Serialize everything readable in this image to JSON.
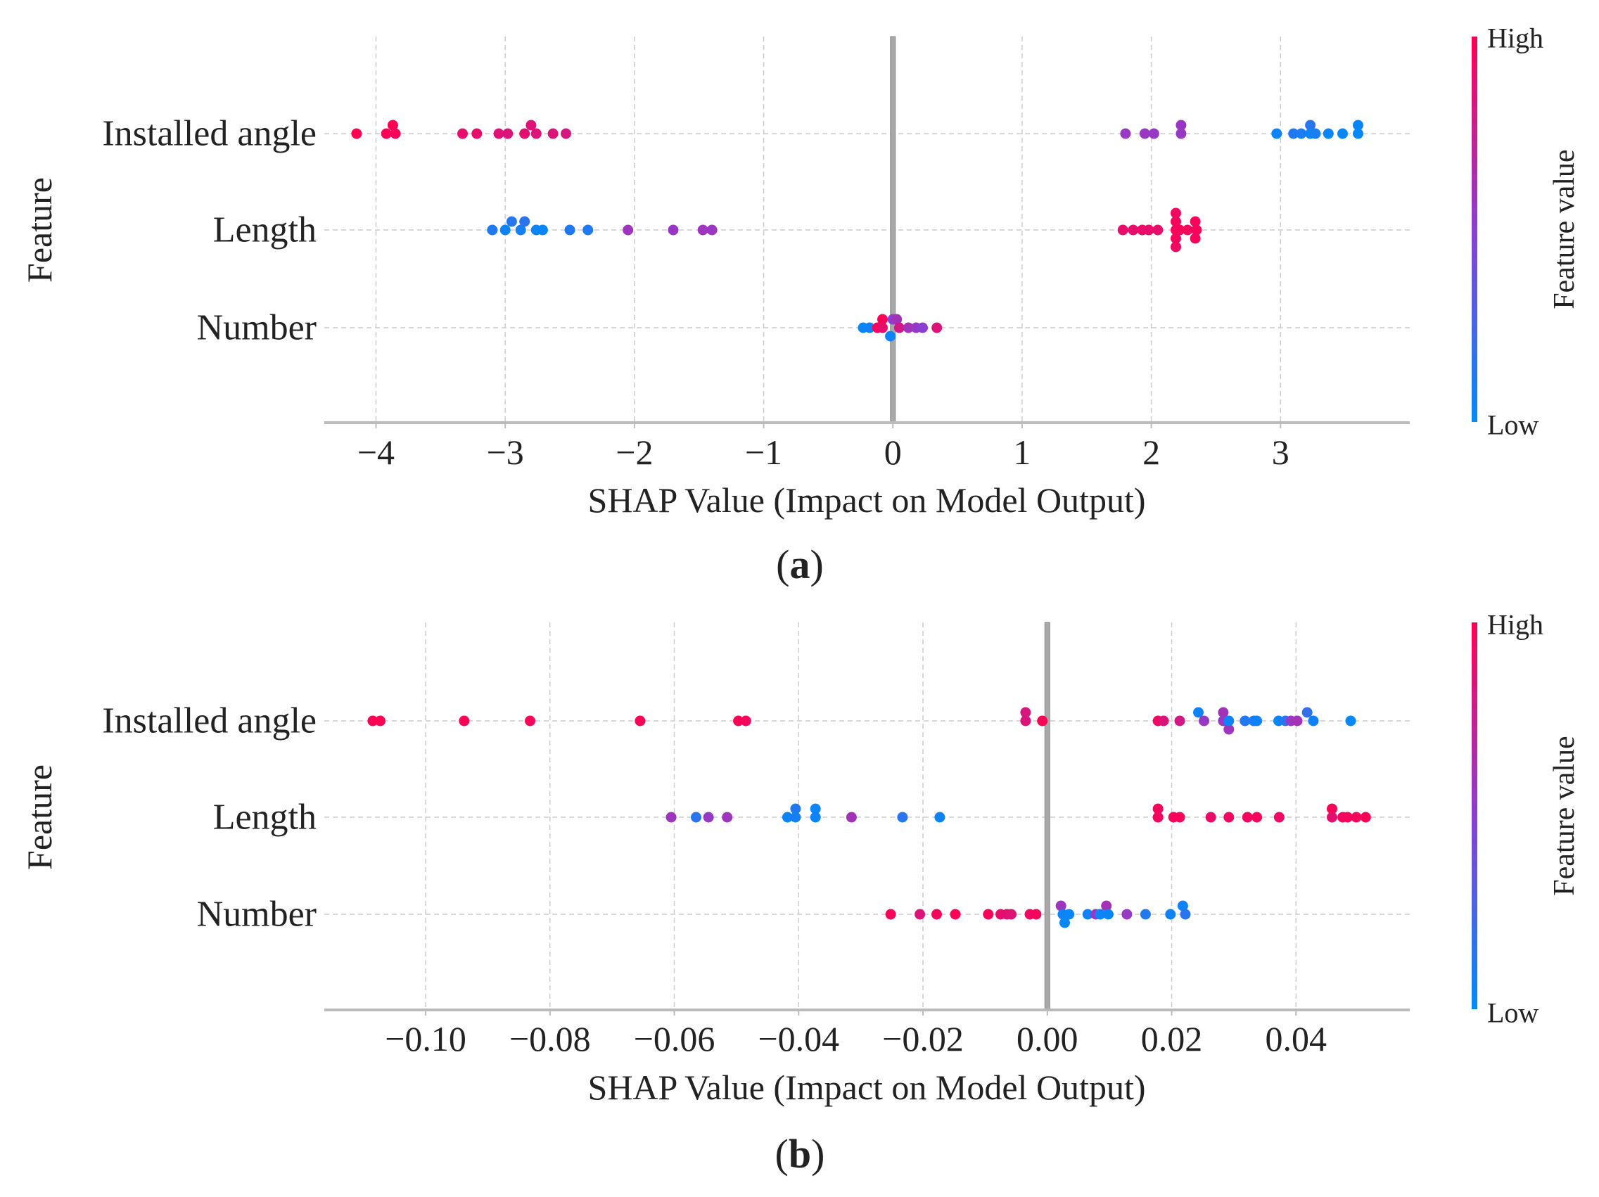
{
  "chart_data": [
    {
      "type": "scatter",
      "subtype": "shap-beeswarm",
      "panel_label": "a",
      "xlabel": "SHAP Value (Impact on Model Output)",
      "ylabel": "Feature",
      "xlim": [
        -4.4,
        4.0
      ],
      "xticks": [
        -4,
        -3,
        -2,
        -1,
        0,
        1,
        2,
        3
      ],
      "xtick_labels": [
        "−4",
        "−3",
        "−2",
        "−1",
        "0",
        "1",
        "2",
        "3"
      ],
      "colorbar": {
        "title": "Feature value",
        "high": "High",
        "low": "Low",
        "high_color": "#ff0052",
        "mid_color": "#8b3fd1",
        "low_color": "#008bfb"
      },
      "features": [
        "Installed angle",
        "Length",
        "Number"
      ],
      "series": [
        {
          "feature": "Installed angle",
          "points": [
            {
              "x": -4.15,
              "v": 1.0,
              "off": 0
            },
            {
              "x": -3.92,
              "v": 0.98,
              "off": 0
            },
            {
              "x": -3.87,
              "v": 1.0,
              "off": 1
            },
            {
              "x": -3.85,
              "v": 0.97,
              "off": 0
            },
            {
              "x": -3.33,
              "v": 0.9,
              "off": 0
            },
            {
              "x": -3.22,
              "v": 0.9,
              "off": 0
            },
            {
              "x": -3.05,
              "v": 0.86,
              "off": 0
            },
            {
              "x": -2.98,
              "v": 0.84,
              "off": 0
            },
            {
              "x": -2.85,
              "v": 0.88,
              "off": 0
            },
            {
              "x": -2.8,
              "v": 0.86,
              "off": 1
            },
            {
              "x": -2.76,
              "v": 0.85,
              "off": 0
            },
            {
              "x": -2.63,
              "v": 0.84,
              "off": 0
            },
            {
              "x": -2.53,
              "v": 0.82,
              "off": 0
            },
            {
              "x": 1.8,
              "v": 0.55,
              "off": 0
            },
            {
              "x": 1.95,
              "v": 0.56,
              "off": 0
            },
            {
              "x": 2.02,
              "v": 0.55,
              "off": 0
            },
            {
              "x": 2.23,
              "v": 0.56,
              "off": 1
            },
            {
              "x": 2.23,
              "v": 0.55,
              "off": 0
            },
            {
              "x": 2.97,
              "v": 0.05,
              "off": 0
            },
            {
              "x": 3.1,
              "v": 0.12,
              "off": 0
            },
            {
              "x": 3.16,
              "v": 0.1,
              "off": 0
            },
            {
              "x": 3.23,
              "v": 0.15,
              "off": 1
            },
            {
              "x": 3.23,
              "v": 0.04,
              "off": 0
            },
            {
              "x": 3.27,
              "v": 0.08,
              "off": 0
            },
            {
              "x": 3.37,
              "v": 0.03,
              "off": 0
            },
            {
              "x": 3.48,
              "v": 0.02,
              "off": 0
            },
            {
              "x": 3.6,
              "v": 0.03,
              "off": 1
            },
            {
              "x": 3.6,
              "v": 0.02,
              "off": 0
            }
          ]
        },
        {
          "feature": "Length",
          "points": [
            {
              "x": -3.1,
              "v": 0.12,
              "off": 0
            },
            {
              "x": -3.0,
              "v": 0.05,
              "off": 0
            },
            {
              "x": -2.95,
              "v": 0.14,
              "off": 1
            },
            {
              "x": -2.88,
              "v": 0.08,
              "off": 0
            },
            {
              "x": -2.85,
              "v": 0.15,
              "off": 1
            },
            {
              "x": -2.76,
              "v": 0.04,
              "off": 0
            },
            {
              "x": -2.71,
              "v": 0.03,
              "off": 0
            },
            {
              "x": -2.5,
              "v": 0.12,
              "off": 0
            },
            {
              "x": -2.36,
              "v": 0.12,
              "off": 0
            },
            {
              "x": -2.05,
              "v": 0.58,
              "off": 0
            },
            {
              "x": -1.7,
              "v": 0.56,
              "off": 0
            },
            {
              "x": -1.47,
              "v": 0.58,
              "off": 0
            },
            {
              "x": -1.4,
              "v": 0.56,
              "off": 0
            },
            {
              "x": 1.78,
              "v": 0.9,
              "off": 0
            },
            {
              "x": 1.86,
              "v": 0.9,
              "off": 0
            },
            {
              "x": 1.93,
              "v": 0.92,
              "off": 0
            },
            {
              "x": 1.98,
              "v": 0.9,
              "off": 0
            },
            {
              "x": 2.05,
              "v": 0.9,
              "off": 0
            },
            {
              "x": 2.19,
              "v": 0.95,
              "off": 2
            },
            {
              "x": 2.19,
              "v": 0.96,
              "off": 1
            },
            {
              "x": 2.19,
              "v": 0.97,
              "off": 0
            },
            {
              "x": 2.19,
              "v": 0.96,
              "off": -1
            },
            {
              "x": 2.19,
              "v": 0.95,
              "off": -2
            },
            {
              "x": 2.22,
              "v": 0.97,
              "off": 0
            },
            {
              "x": 2.28,
              "v": 0.97,
              "off": 0
            },
            {
              "x": 2.34,
              "v": 0.96,
              "off": 1
            },
            {
              "x": 2.35,
              "v": 0.97,
              "off": 0
            },
            {
              "x": 2.34,
              "v": 0.96,
              "off": -1
            }
          ]
        },
        {
          "feature": "Number",
          "points": [
            {
              "x": -0.23,
              "v": 0.03,
              "off": 0
            },
            {
              "x": -0.18,
              "v": 0.05,
              "off": 0
            },
            {
              "x": -0.12,
              "v": 0.97,
              "off": 0
            },
            {
              "x": -0.08,
              "v": 0.98,
              "off": 1
            },
            {
              "x": -0.08,
              "v": 0.9,
              "off": 0
            },
            {
              "x": -0.02,
              "v": 0.05,
              "off": -1
            },
            {
              "x": 0.0,
              "v": 0.5,
              "off": 1
            },
            {
              "x": 0.03,
              "v": 0.6,
              "off": 1
            },
            {
              "x": 0.05,
              "v": 0.8,
              "off": 0
            },
            {
              "x": 0.12,
              "v": 0.6,
              "off": 0
            },
            {
              "x": 0.18,
              "v": 0.55,
              "off": 0
            },
            {
              "x": 0.23,
              "v": 0.5,
              "off": 0
            },
            {
              "x": 0.34,
              "v": 0.85,
              "off": 0
            }
          ]
        }
      ]
    },
    {
      "type": "scatter",
      "subtype": "shap-beeswarm",
      "panel_label": "b",
      "xlabel": "SHAP Value (Impact on Model Output)",
      "ylabel": "Feature",
      "xlim": [
        -0.1163,
        0.0583
      ],
      "xticks": [
        -0.1,
        -0.08,
        -0.06,
        -0.04,
        -0.02,
        0.0,
        0.02,
        0.04
      ],
      "xtick_labels": [
        "−0.10",
        "−0.08",
        "−0.06",
        "−0.04",
        "−0.02",
        "0.00",
        "0.02",
        "0.04"
      ],
      "colorbar": {
        "title": "Feature value",
        "high": "High",
        "low": "Low",
        "high_color": "#ff0052",
        "mid_color": "#8b3fd1",
        "low_color": "#008bfb"
      },
      "features": [
        "Installed angle",
        "Length",
        "Number"
      ],
      "series": [
        {
          "feature": "Installed angle",
          "points": [
            {
              "x": -0.1085,
              "v": 1.0,
              "off": 0
            },
            {
              "x": -0.1073,
              "v": 0.99,
              "off": 0
            },
            {
              "x": -0.0938,
              "v": 0.98,
              "off": 0
            },
            {
              "x": -0.0832,
              "v": 0.97,
              "off": 0
            },
            {
              "x": -0.0655,
              "v": 0.98,
              "off": 0
            },
            {
              "x": -0.0497,
              "v": 0.98,
              "off": 0
            },
            {
              "x": -0.0485,
              "v": 0.97,
              "off": 0
            },
            {
              "x": -0.0035,
              "v": 0.82,
              "off": 1
            },
            {
              "x": -0.0035,
              "v": 0.85,
              "off": 0
            },
            {
              "x": -0.0008,
              "v": 0.98,
              "off": 0
            },
            {
              "x": 0.0178,
              "v": 0.95,
              "off": 0
            },
            {
              "x": 0.0187,
              "v": 0.85,
              "off": 0
            },
            {
              "x": 0.0213,
              "v": 0.8,
              "off": 0
            },
            {
              "x": 0.0243,
              "v": 0.05,
              "off": 1
            },
            {
              "x": 0.0252,
              "v": 0.55,
              "off": 0
            },
            {
              "x": 0.0283,
              "v": 0.6,
              "off": 1
            },
            {
              "x": 0.0283,
              "v": 0.55,
              "off": 0
            },
            {
              "x": 0.0292,
              "v": 0.58,
              "off": -1
            },
            {
              "x": 0.0292,
              "v": 0.05,
              "off": 0
            },
            {
              "x": 0.0318,
              "v": 0.12,
              "off": 0
            },
            {
              "x": 0.0332,
              "v": 0.1,
              "off": 0
            },
            {
              "x": 0.0337,
              "v": 0.05,
              "off": 0
            },
            {
              "x": 0.0372,
              "v": 0.03,
              "off": 0
            },
            {
              "x": 0.0383,
              "v": 0.15,
              "off": 0
            },
            {
              "x": 0.0392,
              "v": 0.55,
              "off": 0
            },
            {
              "x": 0.0402,
              "v": 0.6,
              "off": 0
            },
            {
              "x": 0.0418,
              "v": 0.18,
              "off": 1
            },
            {
              "x": 0.0428,
              "v": 0.05,
              "off": 0
            },
            {
              "x": 0.0488,
              "v": 0.02,
              "off": 0
            }
          ]
        },
        {
          "feature": "Length",
          "points": [
            {
              "x": -0.0605,
              "v": 0.58,
              "off": 0
            },
            {
              "x": -0.0565,
              "v": 0.15,
              "off": 0
            },
            {
              "x": -0.0545,
              "v": 0.55,
              "off": 0
            },
            {
              "x": -0.0515,
              "v": 0.58,
              "off": 0
            },
            {
              "x": -0.0418,
              "v": 0.05,
              "off": 0
            },
            {
              "x": -0.0405,
              "v": 0.12,
              "off": 1
            },
            {
              "x": -0.0405,
              "v": 0.08,
              "off": 0
            },
            {
              "x": -0.0373,
              "v": 0.04,
              "off": 1
            },
            {
              "x": -0.0373,
              "v": 0.05,
              "off": 0
            },
            {
              "x": -0.0315,
              "v": 0.6,
              "off": 0
            },
            {
              "x": -0.0233,
              "v": 0.15,
              "off": 0
            },
            {
              "x": -0.0173,
              "v": 0.05,
              "off": 0
            },
            {
              "x": 0.0178,
              "v": 0.97,
              "off": 1
            },
            {
              "x": 0.0178,
              "v": 0.95,
              "off": 0
            },
            {
              "x": 0.0203,
              "v": 0.96,
              "off": 0
            },
            {
              "x": 0.0213,
              "v": 0.97,
              "off": 0
            },
            {
              "x": 0.0263,
              "v": 0.92,
              "off": 0
            },
            {
              "x": 0.0292,
              "v": 0.94,
              "off": 0
            },
            {
              "x": 0.0322,
              "v": 0.95,
              "off": 0
            },
            {
              "x": 0.0337,
              "v": 0.96,
              "off": 0
            },
            {
              "x": 0.0373,
              "v": 0.93,
              "off": 0
            },
            {
              "x": 0.0458,
              "v": 0.98,
              "off": 1
            },
            {
              "x": 0.0458,
              "v": 0.88,
              "off": 0
            },
            {
              "x": 0.0475,
              "v": 0.95,
              "off": 0
            },
            {
              "x": 0.0483,
              "v": 0.96,
              "off": 0
            },
            {
              "x": 0.0497,
              "v": 0.97,
              "off": 0
            },
            {
              "x": 0.0512,
              "v": 0.98,
              "off": 0
            }
          ]
        },
        {
          "feature": "Number",
          "points": [
            {
              "x": -0.0252,
              "v": 0.97,
              "off": 0
            },
            {
              "x": -0.0205,
              "v": 0.85,
              "off": 0
            },
            {
              "x": -0.0178,
              "v": 0.96,
              "off": 0
            },
            {
              "x": -0.0148,
              "v": 0.98,
              "off": 0
            },
            {
              "x": -0.0095,
              "v": 0.97,
              "off": 0
            },
            {
              "x": -0.0075,
              "v": 0.9,
              "off": 0
            },
            {
              "x": -0.0065,
              "v": 0.88,
              "off": 0
            },
            {
              "x": -0.0058,
              "v": 0.86,
              "off": 0
            },
            {
              "x": -0.0028,
              "v": 0.94,
              "off": 0
            },
            {
              "x": -0.0018,
              "v": 0.96,
              "off": 0
            },
            {
              "x": 0.0022,
              "v": 0.58,
              "off": 1
            },
            {
              "x": 0.0025,
              "v": 0.05,
              "off": 0
            },
            {
              "x": 0.0028,
              "v": 0.02,
              "off": -1
            },
            {
              "x": 0.0035,
              "v": 0.04,
              "off": 0
            },
            {
              "x": 0.0065,
              "v": 0.05,
              "off": 0
            },
            {
              "x": 0.0078,
              "v": 0.55,
              "off": 0
            },
            {
              "x": 0.0085,
              "v": 0.04,
              "off": 0
            },
            {
              "x": 0.0095,
              "v": 0.6,
              "off": 1
            },
            {
              "x": 0.0098,
              "v": 0.03,
              "off": 0
            },
            {
              "x": 0.0128,
              "v": 0.55,
              "off": 0
            },
            {
              "x": 0.0158,
              "v": 0.12,
              "off": 0
            },
            {
              "x": 0.0198,
              "v": 0.05,
              "off": 0
            },
            {
              "x": 0.0218,
              "v": 0.05,
              "off": 1
            },
            {
              "x": 0.0222,
              "v": 0.15,
              "off": 0
            }
          ]
        }
      ]
    }
  ]
}
